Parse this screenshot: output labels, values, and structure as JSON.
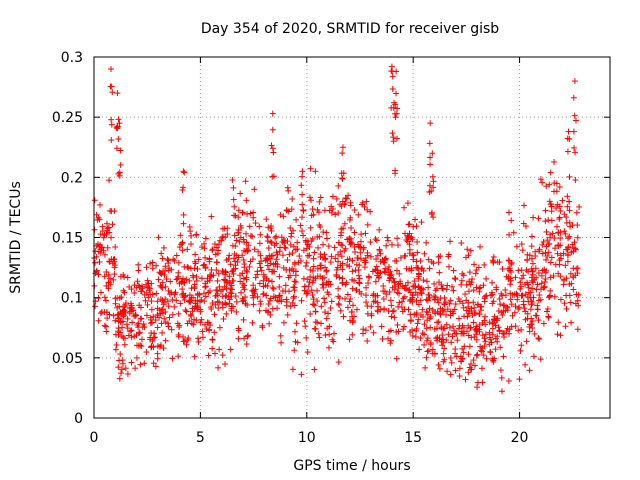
{
  "chart_data": {
    "type": "scatter",
    "title": "Day 354 of 2020, SRMTID for receiver gisb",
    "xlabel": "GPS time / hours",
    "ylabel": "SRMTID / TECUs",
    "xlim": [
      0,
      24.25
    ],
    "ylim": [
      0,
      0.3
    ],
    "xticks": [
      0,
      5,
      10,
      15,
      20
    ],
    "xtick_labels": [
      "0",
      "5",
      "10",
      "15",
      "20"
    ],
    "yticks": [
      0,
      0.05,
      0.1,
      0.15,
      0.2,
      0.25,
      0.3
    ],
    "ytick_labels": [
      "0",
      "0.05",
      "0.1",
      "0.15",
      "0.2",
      "0.25",
      "0.3"
    ],
    "grid": true,
    "marker": "+",
    "series": [
      {
        "name": "gisb",
        "color": "#ff0000",
        "envelope_note": "Dense cloud of ~2000 points, approximate per-segment ranges",
        "segments": [
          {
            "x": [
              0.0,
              1.0
            ],
            "y_low": 0.06,
            "y_high": 0.2
          },
          {
            "x": [
              1.0,
              3.0
            ],
            "y_low": 0.03,
            "y_high": 0.14
          },
          {
            "x": [
              3.0,
              6.5
            ],
            "y_low": 0.04,
            "y_high": 0.17
          },
          {
            "x": [
              6.5,
              9.0
            ],
            "y_low": 0.05,
            "y_high": 0.2
          },
          {
            "x": [
              9.0,
              13.0
            ],
            "y_low": 0.04,
            "y_high": 0.21
          },
          {
            "x": [
              13.0,
              15.5
            ],
            "y_low": 0.04,
            "y_high": 0.18
          },
          {
            "x": [
              15.5,
              19.5
            ],
            "y_low": 0.02,
            "y_high": 0.15
          },
          {
            "x": [
              19.5,
              21.0
            ],
            "y_low": 0.03,
            "y_high": 0.18
          },
          {
            "x": [
              21.0,
              22.8
            ],
            "y_low": 0.06,
            "y_high": 0.22
          }
        ],
        "spikes": [
          {
            "x": 0.8,
            "y": 0.29
          },
          {
            "x": 1.1,
            "y": 0.27
          },
          {
            "x": 1.2,
            "y": 0.245
          },
          {
            "x": 4.2,
            "y": 0.205
          },
          {
            "x": 8.4,
            "y": 0.253
          },
          {
            "x": 9.8,
            "y": 0.205
          },
          {
            "x": 11.7,
            "y": 0.225
          },
          {
            "x": 14.0,
            "y": 0.292
          },
          {
            "x": 14.2,
            "y": 0.288
          },
          {
            "x": 14.1,
            "y": 0.262
          },
          {
            "x": 15.8,
            "y": 0.245
          },
          {
            "x": 15.9,
            "y": 0.22
          },
          {
            "x": 22.6,
            "y": 0.28
          },
          {
            "x": 22.3,
            "y": 0.238
          }
        ]
      }
    ]
  }
}
